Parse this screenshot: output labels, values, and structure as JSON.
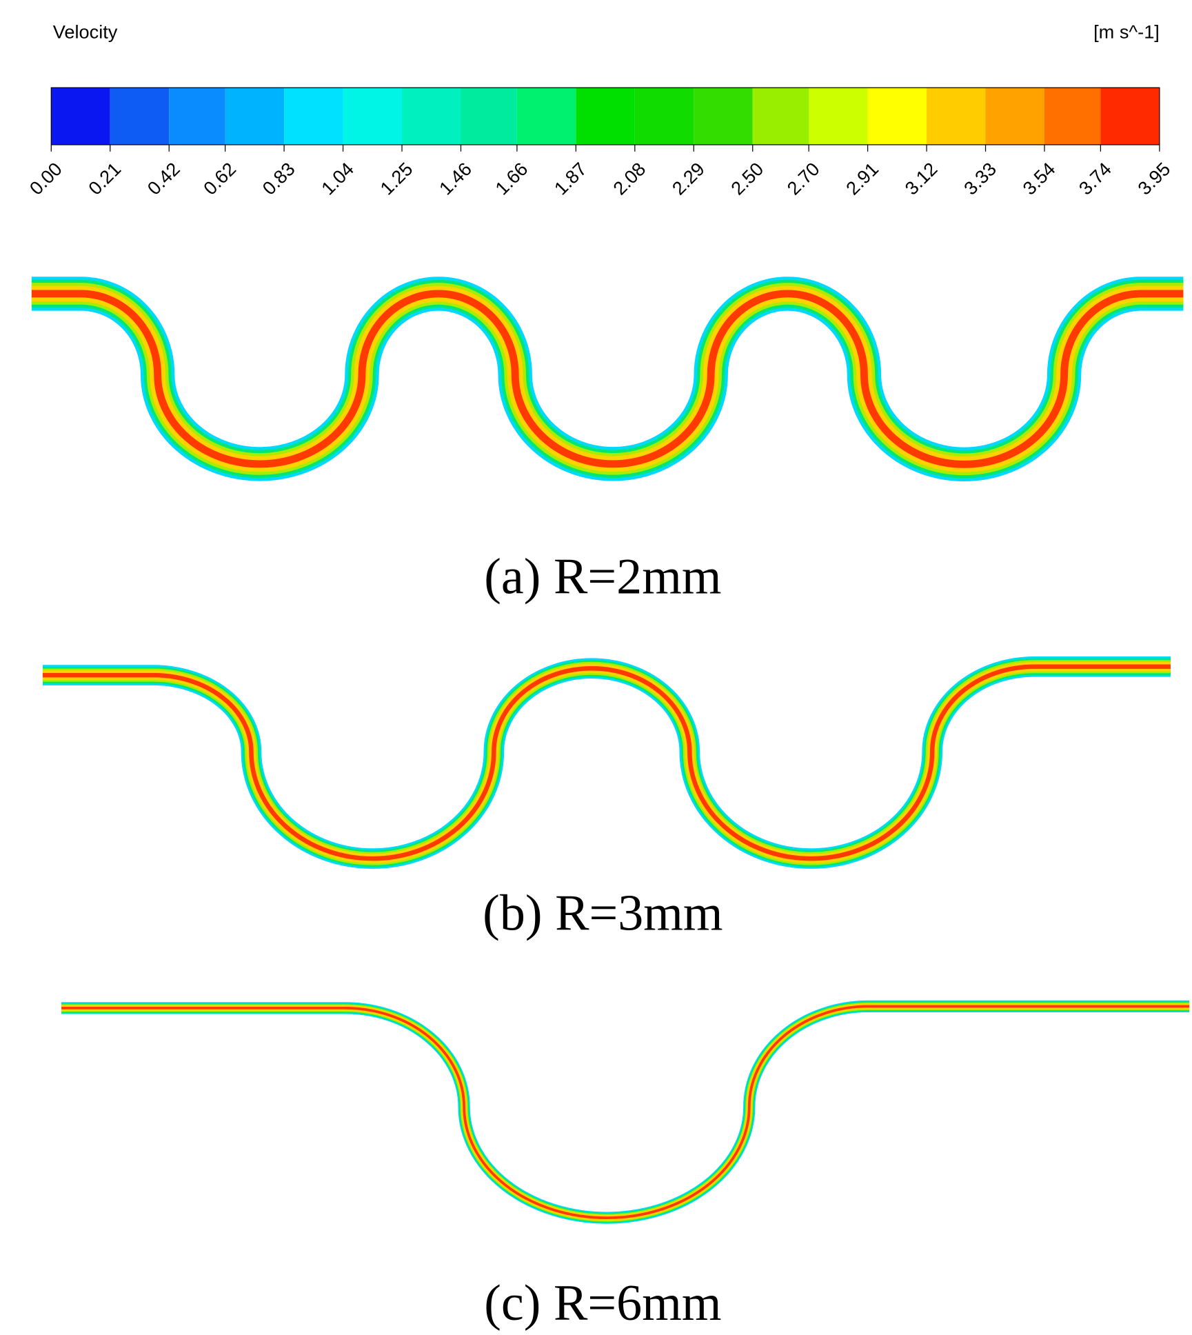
{
  "colorbar": {
    "title": "Velocity",
    "unit": "[m s^-1]",
    "ticks": [
      {
        "value": 0,
        "label": "0.00"
      },
      {
        "value": 0.21,
        "label": "0.21"
      },
      {
        "value": 0.42,
        "label": "0.42"
      },
      {
        "value": 0.62,
        "label": "0.62"
      },
      {
        "value": 0.83,
        "label": "0.83"
      },
      {
        "value": 1.04,
        "label": "1.04"
      },
      {
        "value": 1.25,
        "label": "1.25"
      },
      {
        "value": 1.46,
        "label": "1.46"
      },
      {
        "value": 1.66,
        "label": "1.66"
      },
      {
        "value": 1.87,
        "label": "1.87"
      },
      {
        "value": 2.08,
        "label": "2.08"
      },
      {
        "value": 2.29,
        "label": "2.29"
      },
      {
        "value": 2.5,
        "label": "2.50"
      },
      {
        "value": 2.7,
        "label": "2.70"
      },
      {
        "value": 2.91,
        "label": "2.91"
      },
      {
        "value": 3.12,
        "label": "3.12"
      },
      {
        "value": 3.33,
        "label": "3.33"
      },
      {
        "value": 3.54,
        "label": "3.54"
      },
      {
        "value": 3.74,
        "label": "3.74"
      },
      {
        "value": 3.95,
        "label": "3.95"
      }
    ],
    "colors": [
      "#0b17f0",
      "#0f5cf5",
      "#0a8cff",
      "#00b3ff",
      "#00e0ff",
      "#00f5e6",
      "#00f0c0",
      "#00eb9e",
      "#00f070",
      "#00e000",
      "#10dc00",
      "#33dd00",
      "#99ee00",
      "#ccff00",
      "#ffff00",
      "#ffcc00",
      "#ffa200",
      "#ff7000",
      "#ff2a00"
    ]
  },
  "panels": [
    {
      "caption": "(a) R=2mm"
    },
    {
      "caption": "(b) R=3mm"
    },
    {
      "caption": "(c) R=6mm"
    }
  ]
}
